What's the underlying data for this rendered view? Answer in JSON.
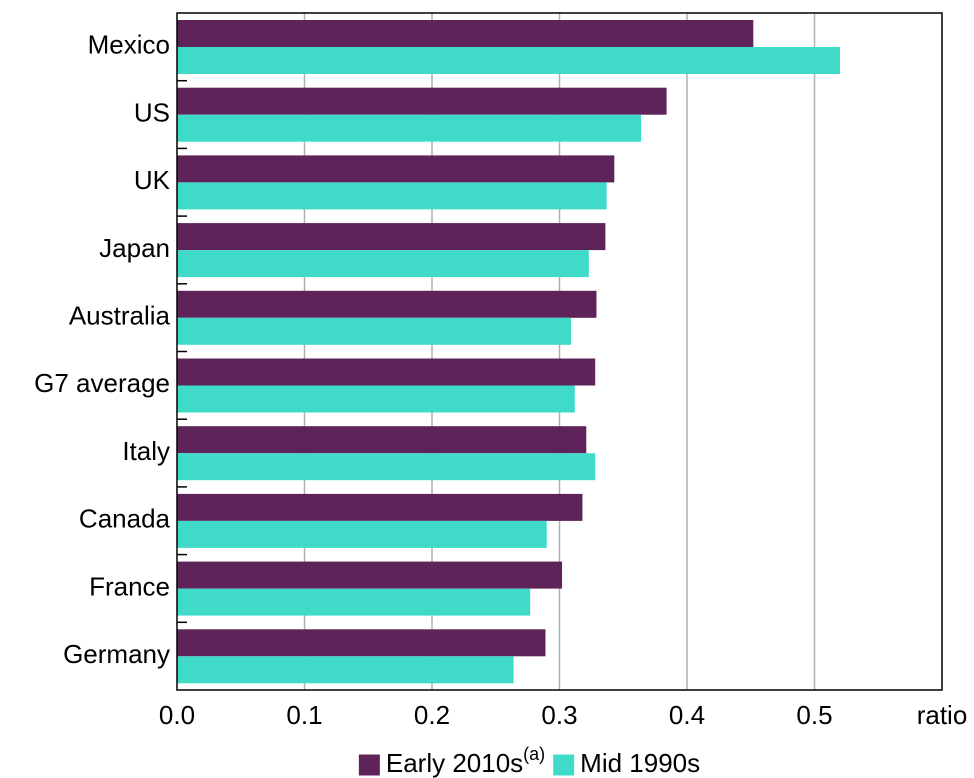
{
  "chart_data": {
    "type": "hbar",
    "categories": [
      "Mexico",
      "US",
      "UK",
      "Japan",
      "Australia",
      "G7 average",
      "Italy",
      "Canada",
      "France",
      "Germany"
    ],
    "series": [
      {
        "name": "Early 2010s",
        "superscript": "(a)",
        "color": "#5e2459",
        "values": [
          0.452,
          0.384,
          0.343,
          0.336,
          0.329,
          0.328,
          0.321,
          0.318,
          0.302,
          0.289
        ]
      },
      {
        "name": "Mid 1990s",
        "color": "#40dbc8",
        "values": [
          0.52,
          0.364,
          0.337,
          0.323,
          0.309,
          0.312,
          0.328,
          0.29,
          0.277,
          0.264
        ]
      }
    ],
    "xlabel": "ratio",
    "xlim": [
      0,
      0.6
    ],
    "xticks": [
      {
        "value": 0,
        "label": "0.0"
      },
      0.1,
      0.2,
      0.3,
      0.4,
      0.5
    ],
    "grid": true,
    "legend": "bottom"
  }
}
